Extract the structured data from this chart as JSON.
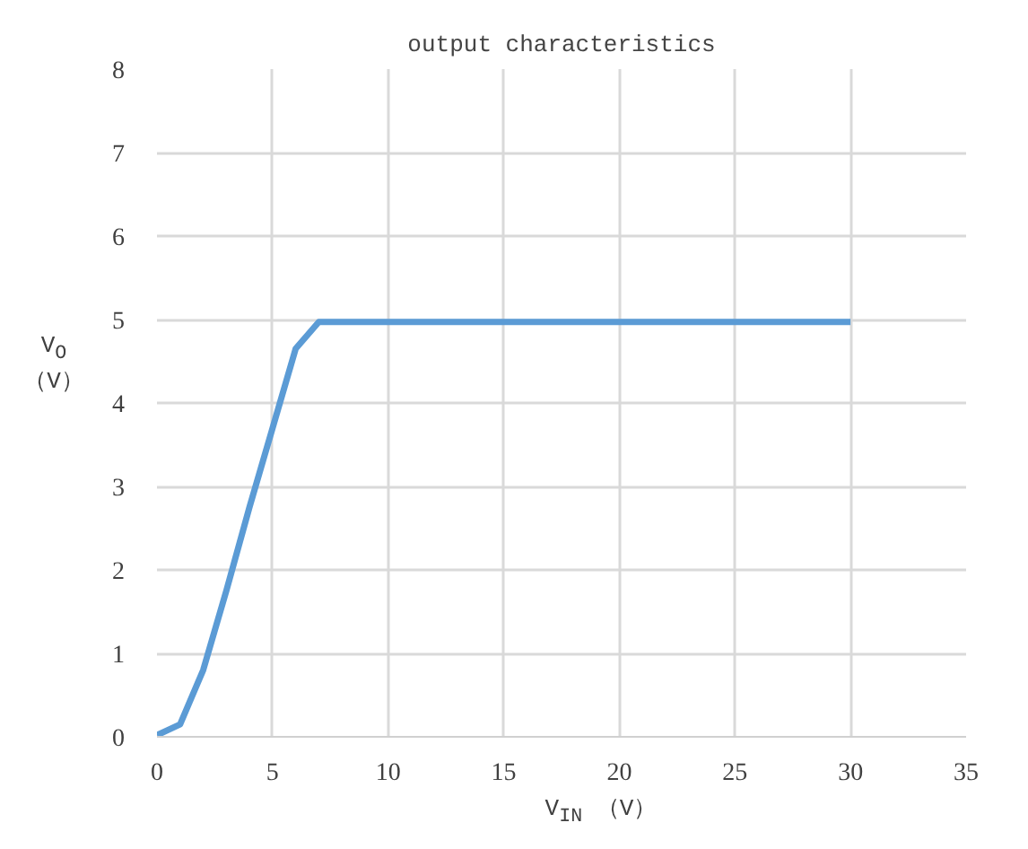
{
  "chart_data": {
    "type": "line",
    "title": "output characteristics",
    "xlabel": "V$_{IN}$ （V）",
    "ylabel": "V$_{O}$\n（V）",
    "series": [
      {
        "color": "#5b9bd5",
        "x": [
          0,
          1,
          2,
          3,
          4,
          5,
          6,
          7,
          30
        ],
        "values": [
          0.02,
          0.15,
          0.8,
          1.75,
          2.75,
          3.7,
          4.65,
          4.97,
          4.97
        ]
      }
    ],
    "xlim": [
      0,
      35
    ],
    "xticks": [
      0,
      5,
      10,
      15,
      20,
      25,
      30,
      35
    ],
    "ylim": [
      0,
      8
    ],
    "yticks": [
      0,
      1,
      2,
      3,
      4,
      5,
      6,
      7,
      8
    ],
    "grid": true,
    "marker": "none",
    "line_style": "solid"
  }
}
